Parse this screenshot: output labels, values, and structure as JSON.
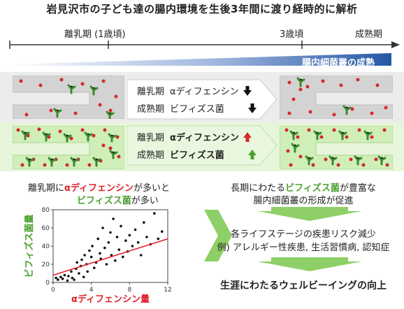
{
  "title": "岩見沢市の子ども達の腸内環境を生後3年間に渡り経時的に解析",
  "timeline": {
    "weaning_label": "離乳期 (1歳頃)",
    "age3_label": "3歳頃",
    "mature_label": "成熟期"
  },
  "banner": "腸内細菌叢の成熟",
  "compare_top": {
    "row1_name": "離乳期",
    "row1_sub": "αディフェンシン",
    "row1_dir": "down",
    "row2_name": "成熟期",
    "row2_sub": "ビフィズス菌",
    "row2_dir": "down"
  },
  "compare_bottom": {
    "row1_name": "離乳期",
    "row1_sub": "αディフェンシン",
    "row1_dir": "up",
    "row2_name": "成熟期",
    "row2_sub": "ビフィズス菌",
    "row2_dir": "up"
  },
  "left_note": {
    "line1_a": "離乳期に",
    "line1_b": "αディフェンシン",
    "line1_c": "が多いと",
    "line2_a": "ビフィズス菌",
    "line2_b": "が多い"
  },
  "right_flow": {
    "line1_a": "長期にわたる",
    "line1_b": "ビフィズス菌",
    "line1_c": "が豊富な",
    "line2": "腸内細菌叢の形成が促進",
    "line3": "各ライフステージの疾患リスク減少",
    "line4": "例) アレルギー性疾患, 生活習慣病, 認知症",
    "line5": "生涯にわたるウェルビーイングの向上"
  },
  "colors": {
    "red": "#e0202a",
    "green": "#4ca02f",
    "banner_blue": "#2457a6",
    "gut_gray": "#d3d3d3",
    "gut_green": "#cfeeb8",
    "bacteria_green": "#3b8a2a",
    "dot_red": "#d42a2a",
    "down_arrow": "#111111",
    "up_red": "#d42a2a",
    "up_green": "#4ca02f"
  },
  "chart_data": {
    "type": "scatter",
    "xlabel": "αディフェンシン量",
    "ylabel": "ビフィズス菌量",
    "xlim": [
      0,
      12
    ],
    "ylim": [
      0,
      80
    ],
    "xticks": [
      "0",
      "4",
      "8",
      "12"
    ],
    "yticks": [
      "0",
      "20",
      "40",
      "60",
      "80"
    ],
    "points": [
      [
        0.3,
        5
      ],
      [
        0.5,
        3
      ],
      [
        0.8,
        6
      ],
      [
        1.0,
        4
      ],
      [
        1.2,
        8
      ],
      [
        1.5,
        2
      ],
      [
        1.6,
        7
      ],
      [
        1.9,
        12
      ],
      [
        2.0,
        5
      ],
      [
        2.2,
        3
      ],
      [
        2.4,
        15
      ],
      [
        2.5,
        22
      ],
      [
        2.7,
        10
      ],
      [
        2.9,
        18
      ],
      [
        3.0,
        25
      ],
      [
        3.2,
        6
      ],
      [
        3.3,
        30
      ],
      [
        3.5,
        20
      ],
      [
        3.6,
        12
      ],
      [
        3.8,
        35
      ],
      [
        4.0,
        28
      ],
      [
        4.1,
        40
      ],
      [
        4.3,
        16
      ],
      [
        4.5,
        22
      ],
      [
        4.7,
        48
      ],
      [
        4.9,
        32
      ],
      [
        5.0,
        26
      ],
      [
        5.2,
        60
      ],
      [
        5.4,
        38
      ],
      [
        5.6,
        20
      ],
      [
        5.8,
        44
      ],
      [
        6.0,
        55
      ],
      [
        6.1,
        30
      ],
      [
        6.3,
        70
      ],
      [
        6.5,
        24
      ],
      [
        6.7,
        50
      ],
      [
        6.9,
        36
      ],
      [
        7.1,
        62
      ],
      [
        7.3,
        28
      ],
      [
        7.6,
        46
      ],
      [
        7.8,
        34
      ],
      [
        8.0,
        52
      ],
      [
        8.3,
        40
      ],
      [
        8.6,
        58
      ],
      [
        8.9,
        44
      ],
      [
        9.2,
        30
      ],
      [
        9.5,
        66
      ],
      [
        9.8,
        50
      ],
      [
        10.2,
        42
      ],
      [
        10.6,
        76
      ],
      [
        11.0,
        48
      ],
      [
        11.4,
        56
      ]
    ],
    "trend": {
      "x": [
        0,
        12
      ],
      "y": [
        8,
        48
      ]
    }
  }
}
